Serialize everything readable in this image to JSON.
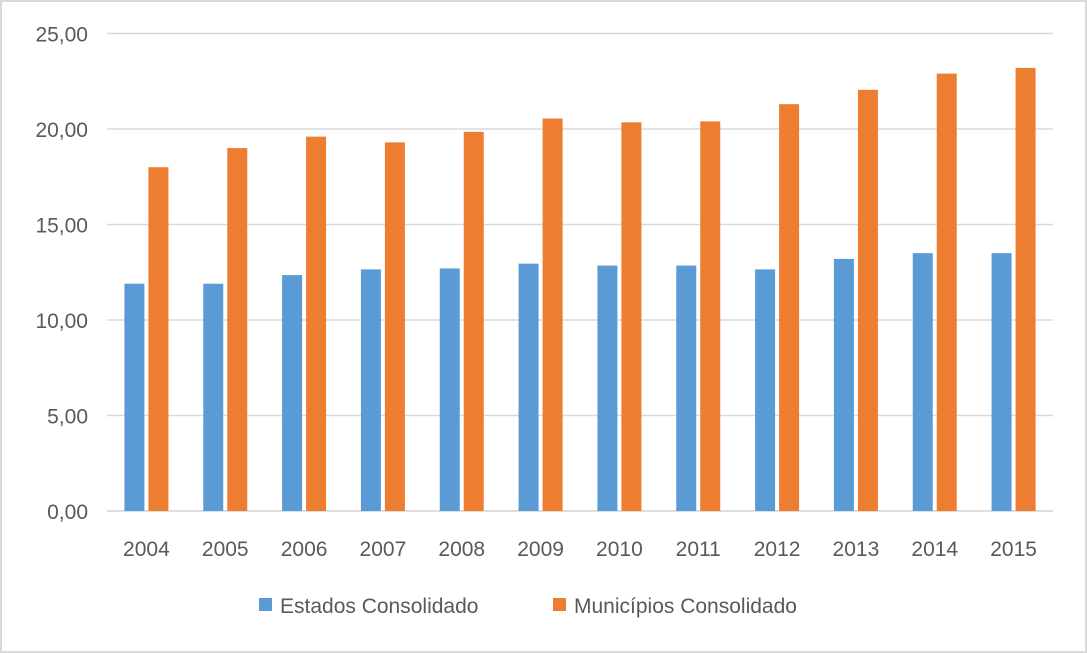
{
  "chart_data": {
    "type": "bar",
    "title": "",
    "xlabel": "",
    "ylabel": "",
    "ylim": [
      0,
      25
    ],
    "yticks": [
      "0,00",
      "5,00",
      "10,00",
      "15,00",
      "20,00",
      "25,00"
    ],
    "grid": true,
    "legend_position": "bottom",
    "categories": [
      "2004",
      "2005",
      "2006",
      "2007",
      "2008",
      "2009",
      "2010",
      "2011",
      "2012",
      "2013",
      "2014",
      "2015"
    ],
    "series": [
      {
        "name": "Estados Consolidado",
        "color": "#5b9bd5",
        "values": [
          11.9,
          11.9,
          12.35,
          12.65,
          12.7,
          12.95,
          12.85,
          12.85,
          12.65,
          13.2,
          13.5,
          13.5
        ]
      },
      {
        "name": "Municípios Consolidado",
        "color": "#ed7d31",
        "values": [
          18.0,
          19.0,
          19.6,
          19.3,
          19.85,
          20.55,
          20.35,
          20.4,
          21.3,
          22.05,
          22.9,
          23.2
        ]
      }
    ]
  }
}
